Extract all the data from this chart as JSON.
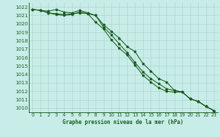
{
  "xlabel": "Graphe pression niveau de la mer (hPa)",
  "ylim": [
    1009.5,
    1022.5
  ],
  "xlim": [
    -0.5,
    23.5
  ],
  "yticks": [
    1010,
    1011,
    1012,
    1013,
    1014,
    1015,
    1016,
    1017,
    1018,
    1019,
    1020,
    1021,
    1022
  ],
  "xticks": [
    0,
    1,
    2,
    3,
    4,
    5,
    6,
    7,
    8,
    9,
    10,
    11,
    12,
    13,
    14,
    15,
    16,
    17,
    18,
    19,
    20,
    21,
    22,
    23
  ],
  "bg_color": "#c8ede9",
  "grid_color": "#aad4cf",
  "line_color": "#1a5c1a",
  "spine_color": "#1a5c1a",
  "line1": [
    1021.7,
    1021.6,
    1021.5,
    1021.7,
    1021.4,
    1021.3,
    1021.6,
    1021.3,
    1021.0,
    1019.9,
    1019.1,
    1018.3,
    1017.3,
    1016.7,
    1015.3,
    1014.4,
    1013.5,
    1013.1,
    1012.1,
    1011.9,
    1011.1,
    1010.8,
    1010.2,
    1009.7
  ],
  "line2": [
    1021.7,
    1021.6,
    1021.3,
    1021.2,
    1021.1,
    1021.2,
    1021.3,
    1021.2,
    1021.0,
    1019.6,
    1018.7,
    1017.6,
    1016.6,
    1015.4,
    1014.3,
    1013.5,
    1012.9,
    1012.3,
    1012.1,
    1011.9,
    1011.1,
    1010.8,
    1010.2,
    1009.7
  ],
  "line3": [
    1021.7,
    1021.6,
    1021.3,
    1021.1,
    1021.0,
    1021.1,
    1021.4,
    1021.2,
    1020.2,
    1019.4,
    1018.1,
    1017.1,
    1016.3,
    1015.1,
    1013.9,
    1013.1,
    1012.4,
    1012.0,
    1011.9,
    1011.9,
    1011.1,
    1010.8,
    1010.2,
    1009.7
  ],
  "ytick_fontsize": 5.2,
  "xtick_fontsize": 5.0,
  "xlabel_fontsize": 5.5,
  "lw": 0.8,
  "markersize": 2.5
}
